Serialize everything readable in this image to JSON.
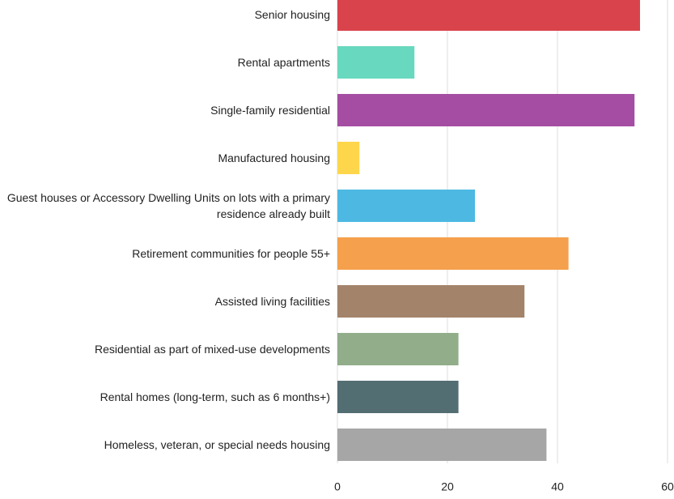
{
  "chart_data": {
    "type": "barh",
    "categories": [
      "Senior housing",
      "Rental apartments",
      "Single-family residential",
      "Manufactured housing",
      "Guest houses or Accessory Dwelling Units on lots with a primary residence already built",
      "Retirement communities for people 55+",
      "Assisted living facilities",
      "Residential as part of mixed-use developments",
      "Rental homes (long-term, such as 6 months+)",
      "Homeless, veteran, or special needs housing"
    ],
    "values": [
      55,
      14,
      54,
      4,
      25,
      42,
      34,
      22,
      22,
      38
    ],
    "colors": [
      "#d9434b",
      "#68d8be",
      "#a44da2",
      "#fdd64b",
      "#4db9e3",
      "#f5a04c",
      "#a3836a",
      "#91ad8a",
      "#536e73",
      "#a6a6a6"
    ],
    "xlim": [
      0,
      60
    ],
    "xticks": [
      0,
      20,
      40,
      60
    ],
    "grid": true
  }
}
